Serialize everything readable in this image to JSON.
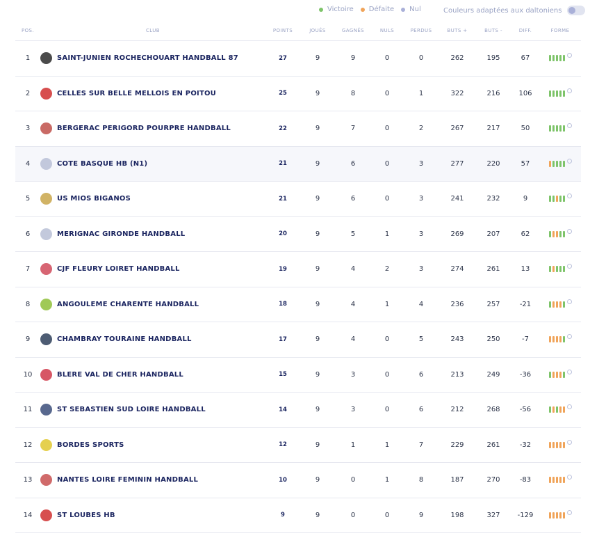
{
  "legend": {
    "items": [
      {
        "label": "Victoire",
        "color": "#7ec46a"
      },
      {
        "label": "Défaite",
        "color": "#f0a45a"
      },
      {
        "label": "Nul",
        "color": "#a9b0d8"
      }
    ],
    "colorblind_label": "Couleurs adaptées aux daltoniens"
  },
  "columns": [
    "POS.",
    "CLUB",
    "POINTS",
    "JOUÉS",
    "GAGNÉS",
    "NULS",
    "PERDUS",
    "BUTS +",
    "BUTS -",
    "DIFF.",
    "FORME"
  ],
  "rows": [
    {
      "pos": "1",
      "club": "SAINT-JUNIEN ROCHECHOUART HANDBALL 87",
      "points": "27",
      "played": "9",
      "won": "9",
      "draws": "0",
      "lost": "0",
      "gf": "262",
      "ga": "195",
      "diff": "67",
      "form": [
        "V",
        "V",
        "V",
        "V",
        "V"
      ],
      "logo_color": "#2b2b2b"
    },
    {
      "pos": "2",
      "club": "CELLES SUR BELLE MELLOIS EN POITOU",
      "points": "25",
      "played": "9",
      "won": "8",
      "draws": "0",
      "lost": "1",
      "gf": "322",
      "ga": "216",
      "diff": "106",
      "form": [
        "V",
        "V",
        "V",
        "V",
        "V"
      ],
      "logo_color": "#d03030"
    },
    {
      "pos": "3",
      "club": "BERGERAC PERIGORD POURPRE HANDBALL",
      "points": "22",
      "played": "9",
      "won": "7",
      "draws": "0",
      "lost": "2",
      "gf": "267",
      "ga": "217",
      "diff": "50",
      "form": [
        "V",
        "V",
        "V",
        "V",
        "V"
      ],
      "logo_color": "#c0504a"
    },
    {
      "pos": "4",
      "club": "COTE BASQUE HB (N1)",
      "points": "21",
      "played": "9",
      "won": "6",
      "draws": "0",
      "lost": "3",
      "gf": "277",
      "ga": "220",
      "diff": "57",
      "form": [
        "D",
        "V",
        "V",
        "V",
        "V"
      ],
      "logo_color": "#b9bfd6"
    },
    {
      "pos": "5",
      "club": "US MIOS BIGANOS",
      "points": "21",
      "played": "9",
      "won": "6",
      "draws": "0",
      "lost": "3",
      "gf": "241",
      "ga": "232",
      "diff": "9",
      "form": [
        "V",
        "V",
        "D",
        "V",
        "V"
      ],
      "logo_color": "#c9a64a"
    },
    {
      "pos": "6",
      "club": "MERIGNAC GIRONDE HANDBALL",
      "points": "20",
      "played": "9",
      "won": "5",
      "draws": "1",
      "lost": "3",
      "gf": "269",
      "ga": "207",
      "diff": "62",
      "form": [
        "V",
        "D",
        "D",
        "V",
        "V"
      ],
      "logo_color": "#b9bfd6"
    },
    {
      "pos": "7",
      "club": "CJF FLEURY LOIRET HANDBALL",
      "points": "19",
      "played": "9",
      "won": "4",
      "draws": "2",
      "lost": "3",
      "gf": "274",
      "ga": "261",
      "diff": "13",
      "form": [
        "V",
        "D",
        "V",
        "V",
        "V"
      ],
      "logo_color": "#d04a5a"
    },
    {
      "pos": "8",
      "club": "ANGOULEME CHARENTE HANDBALL",
      "points": "18",
      "played": "9",
      "won": "4",
      "draws": "1",
      "lost": "4",
      "gf": "236",
      "ga": "257",
      "diff": "-21",
      "form": [
        "V",
        "D",
        "D",
        "D",
        "V"
      ],
      "logo_color": "#8fbf3a"
    },
    {
      "pos": "9",
      "club": "CHAMBRAY TOURAINE HANDBALL",
      "points": "17",
      "played": "9",
      "won": "4",
      "draws": "0",
      "lost": "5",
      "gf": "243",
      "ga": "250",
      "diff": "-7",
      "form": [
        "D",
        "D",
        "D",
        "D",
        "V"
      ],
      "logo_color": "#2e3f5a"
    },
    {
      "pos": "10",
      "club": "BLERE VAL DE CHER HANDBALL",
      "points": "15",
      "played": "9",
      "won": "3",
      "draws": "0",
      "lost": "6",
      "gf": "213",
      "ga": "249",
      "diff": "-36",
      "form": [
        "V",
        "D",
        "D",
        "D",
        "V"
      ],
      "logo_color": "#d03a4a"
    },
    {
      "pos": "11",
      "club": "ST SEBASTIEN SUD LOIRE HANDBALL",
      "points": "14",
      "played": "9",
      "won": "3",
      "draws": "0",
      "lost": "6",
      "gf": "212",
      "ga": "268",
      "diff": "-56",
      "form": [
        "V",
        "D",
        "V",
        "D",
        "D"
      ],
      "logo_color": "#3b4e7a"
    },
    {
      "pos": "12",
      "club": "BORDES SPORTS",
      "points": "12",
      "played": "9",
      "won": "1",
      "draws": "1",
      "lost": "7",
      "gf": "229",
      "ga": "261",
      "diff": "-32",
      "form": [
        "D",
        "D",
        "D",
        "D",
        "D"
      ],
      "logo_color": "#e0c830"
    },
    {
      "pos": "13",
      "club": "NANTES LOIRE FEMININ HANDBALL",
      "points": "10",
      "played": "9",
      "won": "0",
      "draws": "1",
      "lost": "8",
      "gf": "187",
      "ga": "270",
      "diff": "-83",
      "form": [
        "D",
        "D",
        "D",
        "D",
        "D"
      ],
      "logo_color": "#c85050"
    },
    {
      "pos": "14",
      "club": "ST LOUBES HB",
      "points": "9",
      "played": "9",
      "won": "0",
      "draws": "0",
      "lost": "9",
      "gf": "198",
      "ga": "327",
      "diff": "-129",
      "form": [
        "D",
        "D",
        "D",
        "D",
        "D"
      ],
      "logo_color": "#d03030"
    }
  ],
  "highlighted_pos": "4"
}
